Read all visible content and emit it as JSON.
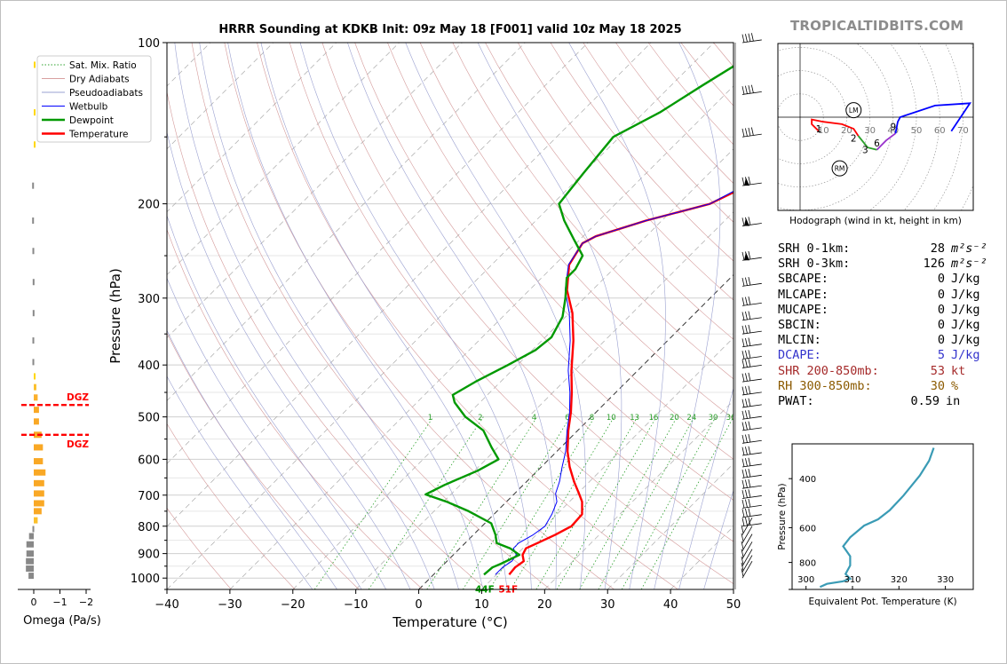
{
  "title": "HRRR Sounding at KDKB Init: 09z May 18 [F001] valid 10z May 18 2025",
  "brand": "TROPICALTIDBITS.COM",
  "chart_data": [
    {
      "type": "line",
      "name": "skew-t",
      "xlabel": "Temperature (°C)",
      "ylabel": "Pressure (hPa)",
      "xlim": [
        -40,
        50
      ],
      "ylim": [
        1050,
        100
      ],
      "y_scale": "log",
      "x_ticks": [
        -40,
        -30,
        -20,
        -10,
        0,
        10,
        20,
        30,
        40,
        50
      ],
      "y_ticks": [
        100,
        200,
        300,
        400,
        500,
        600,
        700,
        800,
        900,
        1000
      ],
      "grid": true,
      "legend_position": "top-left",
      "legend": [
        {
          "label": "Sat. Mix. Ratio",
          "color": "#2ca02c",
          "style": "dotted"
        },
        {
          "label": "Dry Adiabats",
          "color": "#d9a0a0",
          "style": "solid"
        },
        {
          "label": "Pseudoadiabats",
          "color": "#9aa0d0",
          "style": "solid"
        },
        {
          "label": "Wetbulb",
          "color": "#0000ff",
          "style": "solid"
        },
        {
          "label": "Dewpoint",
          "color": "#009900",
          "style": "solid"
        },
        {
          "label": "Temperature",
          "color": "#ff0000",
          "style": "solid"
        }
      ],
      "mixing_ratio_labels": [
        "1",
        "2",
        "4",
        "6",
        "8",
        "10",
        "13",
        "16",
        "20",
        "24",
        "30",
        "36"
      ],
      "series": [
        {
          "name": "Temperature",
          "color": "#ff0000",
          "points": [
            [
              12.0,
              985
            ],
            [
              11.8,
              955
            ],
            [
              12.2,
              930
            ],
            [
              11.0,
              905
            ],
            [
              10.5,
              880
            ],
            [
              11.5,
              860
            ],
            [
              13.0,
              830
            ],
            [
              14.2,
              800
            ],
            [
              14.0,
              760
            ],
            [
              12.0,
              720
            ],
            [
              10.2,
              695
            ],
            [
              7.5,
              660
            ],
            [
              4.5,
              620
            ],
            [
              1.7,
              580
            ],
            [
              -1.5,
              530
            ],
            [
              -4.0,
              490
            ],
            [
              -7.0,
              450
            ],
            [
              -10.5,
              410
            ],
            [
              -15.0,
              360
            ],
            [
              -19.5,
              320
            ],
            [
              -24.0,
              290
            ],
            [
              -27.7,
              260
            ],
            [
              -29.0,
              237
            ],
            [
              -28.0,
              230
            ],
            [
              -22.5,
              215
            ],
            [
              -15.0,
              200
            ],
            [
              -12.0,
              185
            ],
            [
              -7.0,
              165
            ],
            [
              -4.0,
              150
            ],
            [
              -0.5,
              130
            ],
            [
              1.0,
              122
            ],
            [
              4.0,
              110
            ],
            [
              6.5,
              100
            ]
          ]
        },
        {
          "name": "Wetbulb",
          "color": "#0000ff",
          "points": [
            [
              9.8,
              985
            ],
            [
              9.8,
              955
            ],
            [
              10.3,
              930
            ],
            [
              10.0,
              905
            ],
            [
              8.5,
              880
            ],
            [
              8.5,
              860
            ],
            [
              9.5,
              830
            ],
            [
              10.0,
              800
            ],
            [
              9.2,
              760
            ],
            [
              8.0,
              720
            ],
            [
              6.5,
              695
            ],
            [
              5.2,
              660
            ],
            [
              3.3,
              620
            ],
            [
              1.4,
              580
            ],
            [
              -1.7,
              530
            ],
            [
              -4.2,
              490
            ],
            [
              -7.3,
              450
            ],
            [
              -11.0,
              410
            ],
            [
              -15.5,
              360
            ],
            [
              -20.0,
              320
            ],
            [
              -24.3,
              290
            ],
            [
              -27.8,
              260
            ],
            [
              -29.0,
              237
            ],
            [
              -28.0,
              230
            ],
            [
              -22.5,
              215
            ],
            [
              -15.0,
              200
            ],
            [
              -12.5,
              185
            ],
            [
              -7.5,
              165
            ],
            [
              -4.5,
              150
            ],
            [
              -1.0,
              130
            ],
            [
              0.5,
              122
            ],
            [
              3.5,
              110
            ],
            [
              6.0,
              100
            ]
          ]
        },
        {
          "name": "Dewpoint",
          "color": "#009900",
          "points": [
            [
              8.0,
              985
            ],
            [
              8.2,
              955
            ],
            [
              9.0,
              940
            ],
            [
              10.5,
              905
            ],
            [
              8.0,
              880
            ],
            [
              5.0,
              860
            ],
            [
              3.5,
              830
            ],
            [
              1.0,
              790
            ],
            [
              -4.5,
              750
            ],
            [
              -9.5,
              720
            ],
            [
              -14.0,
              698
            ],
            [
              -12.5,
              670
            ],
            [
              -9.5,
              630
            ],
            [
              -8.0,
              600
            ],
            [
              -11.0,
              570
            ],
            [
              -15.0,
              530
            ],
            [
              -20.0,
              500
            ],
            [
              -24.0,
              470
            ],
            [
              -25.5,
              455
            ],
            [
              -24.0,
              430
            ],
            [
              -21.5,
              400
            ],
            [
              -19.5,
              375
            ],
            [
              -19.0,
              355
            ],
            [
              -20.5,
              325
            ],
            [
              -23.0,
              300
            ],
            [
              -26.0,
              275
            ],
            [
              -26.0,
              265
            ],
            [
              -27.0,
              250
            ],
            [
              -31.0,
              233
            ],
            [
              -35.5,
              215
            ],
            [
              -39.0,
              200
            ],
            [
              -40.0,
              175
            ],
            [
              -41.0,
              150
            ],
            [
              -37.5,
              135
            ],
            [
              -35.0,
              120
            ],
            [
              -33.0,
              110
            ],
            [
              -31.5,
              100
            ]
          ]
        }
      ],
      "surface_labels": {
        "dewpoint": "44F",
        "temperature": "51F"
      },
      "dgz_label": "DGZ",
      "dgz_pressures": [
        475,
        540
      ]
    },
    {
      "type": "bar",
      "name": "omega",
      "xlabel": "Omega (Pa/s)",
      "x_ticks": [
        "0",
        "−1",
        "−2"
      ],
      "xlim": [
        0.4,
        -2.2
      ],
      "bars": [
        {
          "p": 110,
          "w": -0.05,
          "c": "#ffd700"
        },
        {
          "p": 135,
          "w": -0.05,
          "c": "#ffd700"
        },
        {
          "p": 155,
          "w": -0.05,
          "c": "#ffd700"
        },
        {
          "p": 185,
          "w": 0.06,
          "c": "#888888"
        },
        {
          "p": 215,
          "w": 0.06,
          "c": "#888888"
        },
        {
          "p": 245,
          "w": 0.05,
          "c": "#888888"
        },
        {
          "p": 280,
          "w": 0.04,
          "c": "#888888"
        },
        {
          "p": 320,
          "w": 0.04,
          "c": "#888888"
        },
        {
          "p": 360,
          "w": 0.05,
          "c": "#888888"
        },
        {
          "p": 395,
          "w": 0.05,
          "c": "#888888"
        },
        {
          "p": 420,
          "w": -0.05,
          "c": "#ffd700"
        },
        {
          "p": 440,
          "w": -0.1,
          "c": "#fbc02d"
        },
        {
          "p": 460,
          "w": -0.15,
          "c": "#fbb02c"
        },
        {
          "p": 485,
          "w": -0.2,
          "c": "#f9a825"
        },
        {
          "p": 510,
          "w": -0.2,
          "c": "#f9a825"
        },
        {
          "p": 540,
          "w": -0.3,
          "c": "#f9a825"
        },
        {
          "p": 570,
          "w": -0.35,
          "c": "#f9a825"
        },
        {
          "p": 605,
          "w": -0.35,
          "c": "#f9a825"
        },
        {
          "p": 635,
          "w": -0.45,
          "c": "#f9a825"
        },
        {
          "p": 665,
          "w": -0.4,
          "c": "#f9a825"
        },
        {
          "p": 695,
          "w": -0.4,
          "c": "#f9a825"
        },
        {
          "p": 725,
          "w": -0.4,
          "c": "#f9a825"
        },
        {
          "p": 750,
          "w": -0.3,
          "c": "#f9a825"
        },
        {
          "p": 780,
          "w": -0.15,
          "c": "#fbc02d"
        },
        {
          "p": 810,
          "w": 0.05,
          "c": "#888888"
        },
        {
          "p": 835,
          "w": 0.18,
          "c": "#888888"
        },
        {
          "p": 865,
          "w": 0.28,
          "c": "#888888"
        },
        {
          "p": 900,
          "w": 0.28,
          "c": "#888888"
        },
        {
          "p": 930,
          "w": 0.3,
          "c": "#888888"
        },
        {
          "p": 960,
          "w": 0.3,
          "c": "#888888"
        },
        {
          "p": 990,
          "w": 0.2,
          "c": "#888888"
        }
      ]
    },
    {
      "type": "line",
      "name": "hodograph",
      "xlabel": "Hodograph (wind in kt, height in km)",
      "ring_labels": [
        "10",
        "20",
        "30",
        "40",
        "50",
        "60",
        "70"
      ],
      "height_labels": [
        {
          "t": "1",
          "u": 8,
          "v": -5
        },
        {
          "t": "2",
          "u": 23,
          "v": -9
        },
        {
          "t": "3",
          "u": 28,
          "v": -14
        },
        {
          "t": "6",
          "u": 33,
          "v": -11
        },
        {
          "t": "9",
          "u": 40,
          "v": -4
        }
      ],
      "storm_motion": [
        {
          "t": "LM",
          "u": 23,
          "v": 3
        },
        {
          "t": "RM",
          "u": 17,
          "v": -22
        }
      ],
      "segments": [
        {
          "color": "#ff0000",
          "points": [
            [
              8,
              -6
            ],
            [
              5,
              -3
            ],
            [
              5,
              -1
            ],
            [
              10,
              -2
            ],
            [
              18,
              -3
            ],
            [
              23,
              -5
            ],
            [
              25,
              -8
            ]
          ]
        },
        {
          "color": "#2ca02c",
          "points": [
            [
              25,
              -8
            ],
            [
              29,
              -13
            ],
            [
              33,
              -14
            ]
          ]
        },
        {
          "color": "#9932cc",
          "points": [
            [
              33,
              -14
            ],
            [
              37,
              -10
            ],
            [
              41,
              -7
            ]
          ]
        },
        {
          "color": "#0000ff",
          "points": [
            [
              41,
              -7
            ],
            [
              42,
              -2
            ],
            [
              43,
              0
            ],
            [
              58,
              5
            ],
            [
              73,
              6
            ],
            [
              65,
              -6
            ]
          ]
        }
      ]
    },
    {
      "type": "line",
      "name": "theta-e",
      "xlabel": "Equivalent Pot. Temperature (K)",
      "ylabel": "Pressure (hPa)",
      "x_ticks": [
        300,
        310,
        320,
        330
      ],
      "y_ticks": [
        400,
        600,
        800
      ],
      "xlim": [
        297,
        336
      ],
      "ylim": [
        1000,
        300
      ],
      "series": [
        {
          "name": "theta-e",
          "color": "#3a9bb5",
          "points": [
            [
              303.0,
              980
            ],
            [
              304.5,
              955
            ],
            [
              308,
              935
            ],
            [
              309.5,
              915
            ],
            [
              308.5,
              880
            ],
            [
              309.5,
              820
            ],
            [
              309.5,
              760
            ],
            [
              308,
              700
            ],
            [
              309.5,
              650
            ],
            [
              312.5,
              590
            ],
            [
              315.5,
              560
            ],
            [
              318,
              520
            ],
            [
              321,
              460
            ],
            [
              324.5,
              390
            ],
            [
              326.5,
              345
            ],
            [
              327.5,
              310
            ]
          ]
        }
      ]
    }
  ],
  "indices": [
    {
      "label": "SRH 0-1km:",
      "value": "28",
      "unit": "m²s⁻²",
      "color": "#000000"
    },
    {
      "label": "SRH 0-3km:",
      "value": "126",
      "unit": "m²s⁻²",
      "color": "#000000"
    },
    {
      "label": "SBCAPE:",
      "value": "0",
      "unit": "J/kg",
      "color": "#000000"
    },
    {
      "label": "MLCAPE:",
      "value": "0",
      "unit": "J/kg",
      "color": "#000000"
    },
    {
      "label": "MUCAPE:",
      "value": "0",
      "unit": "J/kg",
      "color": "#000000"
    },
    {
      "label": "SBCIN:",
      "value": "0",
      "unit": "J/kg",
      "color": "#000000"
    },
    {
      "label": "MLCIN:",
      "value": "0",
      "unit": "J/kg",
      "color": "#000000"
    },
    {
      "label": "DCAPE:",
      "value": "5",
      "unit": "J/kg",
      "color": "#3333cc"
    },
    {
      "label": "SHR 200-850mb:",
      "value": "53",
      "unit": "kt",
      "color": "#a52a2a"
    },
    {
      "label": "RH 300-850mb:",
      "value": "30",
      "unit": "%",
      "color": "#8b5a00"
    },
    {
      "label": "PWAT:",
      "value": "0.59",
      "unit": "in",
      "color": "#000000"
    }
  ]
}
